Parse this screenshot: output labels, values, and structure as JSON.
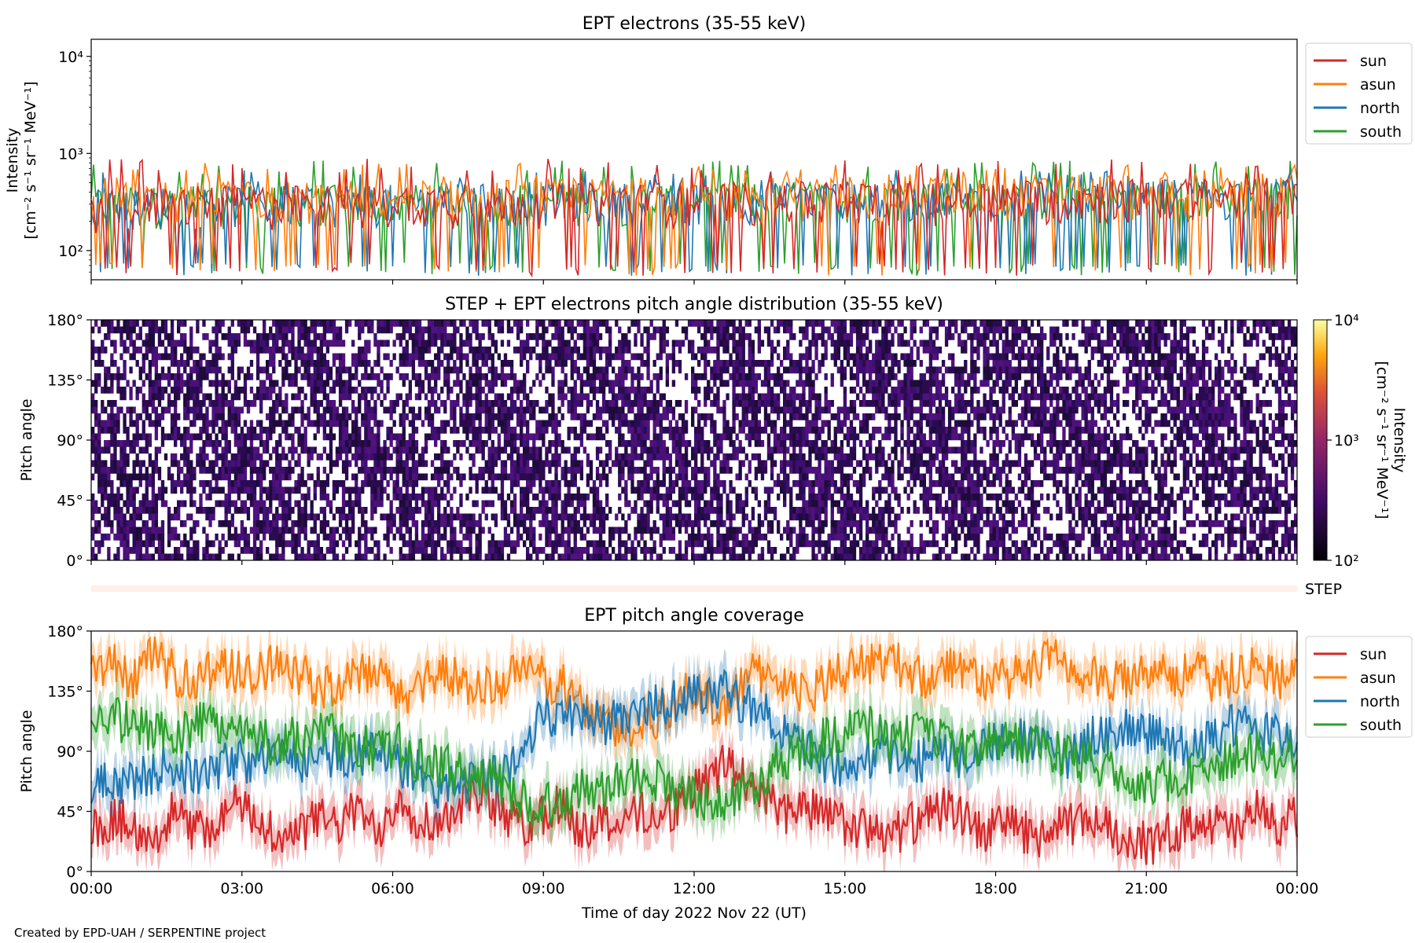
{
  "credit": "Created by EPD-UAH / SERPENTINE project",
  "colors": {
    "sun": "#d62728",
    "asun": "#ff7f0e",
    "north": "#1f77b4",
    "south": "#2ca02c",
    "pad": "#3b0f6f",
    "step_bar": "#fdf0e8"
  },
  "chart_data": [
    {
      "type": "line",
      "title": "EPT electrons (35-55 keV)",
      "ylabel_line1": "Intensity",
      "ylabel_line2": "[cm⁻² s⁻¹ sr⁻¹ MeV⁻¹]",
      "yscale": "log",
      "ylim": [
        50,
        15000
      ],
      "yticks": [
        {
          "value": 100,
          "label": "10²"
        },
        {
          "value": 1000,
          "label": "10³"
        },
        {
          "value": 10000,
          "label": "10⁴"
        }
      ],
      "x_range_hours": [
        0,
        24
      ],
      "series": [
        {
          "name": "sun",
          "color": "#d62728",
          "typical": [
            150,
            450
          ],
          "spikes_high": 900,
          "dips_low": 55
        },
        {
          "name": "asun",
          "color": "#ff7f0e",
          "typical": [
            170,
            500
          ],
          "spikes_high": 800,
          "dips_low": 55
        },
        {
          "name": "north",
          "color": "#1f77b4",
          "typical": [
            160,
            450
          ],
          "spikes_high": 700,
          "dips_low": 55
        },
        {
          "name": "south",
          "color": "#2ca02c",
          "typical": [
            160,
            450
          ],
          "spikes_high": 850,
          "dips_low": 55
        }
      ],
      "legend_position": "upper-right-outside"
    },
    {
      "type": "heatmap",
      "title": "STEP + EPT electrons pitch angle distribution (35-55 keV)",
      "ylabel": "Pitch angle",
      "ylim": [
        0,
        180
      ],
      "yticks": [
        {
          "value": 0,
          "label": "0°"
        },
        {
          "value": 45,
          "label": "45°"
        },
        {
          "value": 90,
          "label": "90°"
        },
        {
          "value": 135,
          "label": "135°"
        },
        {
          "value": 180,
          "label": "180°"
        }
      ],
      "colorbar": {
        "label_line1": "Intensity",
        "label_line2": "[cm⁻² s⁻¹ sr⁻¹ MeV⁻¹]",
        "scale": "log",
        "range": [
          100,
          10000
        ],
        "ticks": [
          {
            "value": 100,
            "label": "10²"
          },
          {
            "value": 1000,
            "label": "10³"
          },
          {
            "value": 10000,
            "label": "10⁴"
          }
        ]
      }
    },
    {
      "type": "bar",
      "label": "STEP"
    },
    {
      "type": "line",
      "title": "EPT pitch angle coverage",
      "ylabel": "Pitch angle",
      "xlabel": "Time of day 2022 Nov 22 (UT)",
      "ylim": [
        0,
        180
      ],
      "yticks": [
        {
          "value": 0,
          "label": "0°"
        },
        {
          "value": 45,
          "label": "45°"
        },
        {
          "value": 90,
          "label": "90°"
        },
        {
          "value": 135,
          "label": "135°"
        },
        {
          "value": 180,
          "label": "180°"
        }
      ],
      "xticks": [
        {
          "value": 0,
          "label": "00:00"
        },
        {
          "value": 3,
          "label": "03:00"
        },
        {
          "value": 6,
          "label": "06:00"
        },
        {
          "value": 9,
          "label": "09:00"
        },
        {
          "value": 12,
          "label": "12:00"
        },
        {
          "value": 15,
          "label": "15:00"
        },
        {
          "value": 18,
          "label": "18:00"
        },
        {
          "value": 21,
          "label": "21:00"
        },
        {
          "value": 24,
          "label": "00:00"
        }
      ],
      "series": [
        {
          "name": "sun",
          "color": "#d62728",
          "values": [
            30,
            40,
            35,
            25,
            45,
            30,
            35,
            50,
            40,
            30,
            25,
            40,
            35,
            45,
            30,
            55,
            40,
            35,
            50,
            60,
            45,
            35,
            40,
            50,
            30,
            40,
            35,
            45,
            40,
            55,
            65,
            80,
            70,
            55,
            45,
            50,
            40,
            35,
            30,
            25,
            35,
            40,
            50,
            35,
            30,
            40,
            25,
            30,
            35,
            40,
            30,
            25,
            20,
            30,
            40,
            35,
            30,
            45,
            35,
            40
          ]
        },
        {
          "name": "asun",
          "color": "#ff7f0e",
          "values": [
            150,
            155,
            145,
            160,
            150,
            140,
            155,
            150,
            145,
            160,
            150,
            140,
            135,
            145,
            150,
            130,
            140,
            150,
            145,
            135,
            140,
            150,
            145,
            140,
            125,
            115,
            105,
            110,
            120,
            135,
            130,
            120,
            145,
            150,
            140,
            130,
            145,
            150,
            155,
            160,
            150,
            145,
            155,
            150,
            140,
            145,
            150,
            160,
            150,
            145,
            140,
            150,
            155,
            145,
            150,
            140,
            150,
            155,
            145,
            150
          ]
        },
        {
          "name": "north",
          "color": "#1f77b4",
          "values": [
            60,
            70,
            65,
            75,
            80,
            70,
            75,
            85,
            80,
            90,
            85,
            80,
            90,
            85,
            95,
            80,
            75,
            60,
            65,
            75,
            70,
            85,
            120,
            115,
            120,
            110,
            115,
            120,
            125,
            130,
            135,
            140,
            125,
            120,
            100,
            95,
            80,
            75,
            85,
            90,
            80,
            85,
            90,
            80,
            95,
            100,
            95,
            90,
            85,
            100,
            105,
            110,
            100,
            95,
            90,
            100,
            110,
            105,
            100,
            95
          ]
        },
        {
          "name": "south",
          "color": "#2ca02c",
          "values": [
            120,
            115,
            110,
            105,
            100,
            110,
            115,
            105,
            100,
            95,
            100,
            105,
            100,
            95,
            90,
            95,
            85,
            80,
            75,
            70,
            65,
            55,
            50,
            55,
            60,
            65,
            70,
            75,
            65,
            60,
            55,
            50,
            60,
            75,
            85,
            95,
            100,
            105,
            110,
            100,
            105,
            100,
            95,
            90,
            95,
            100,
            95,
            90,
            85,
            80,
            75,
            70,
            65,
            70,
            75,
            80,
            85,
            90,
            85,
            80
          ]
        }
      ],
      "legend_position": "upper-right-outside"
    }
  ]
}
